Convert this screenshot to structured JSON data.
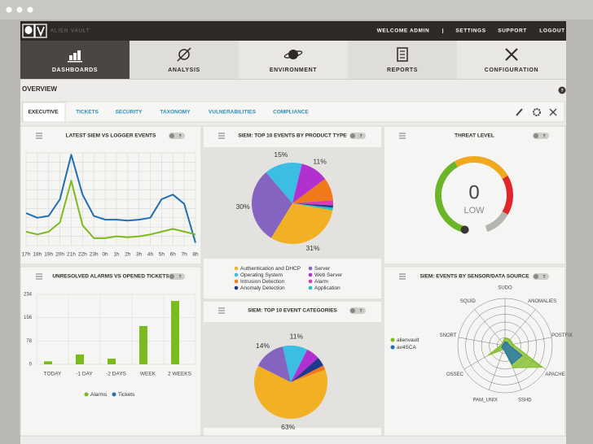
{
  "header": {
    "brand": "ALIEN VAULT",
    "links": [
      "WELCOME ADMIN",
      "|",
      "SETTINGS",
      "SUPPORT",
      "LOGOUT"
    ]
  },
  "nav": {
    "items": [
      "DASHBOARDS",
      "ANALYSIS",
      "ENVIRONMENT",
      "REPORTS",
      "CONFIGURATION"
    ],
    "active": 0
  },
  "overview": {
    "title": "OVERVIEW",
    "help": "?"
  },
  "tabs": {
    "items": [
      "EXECUTIVE",
      "TICKETS",
      "SECURITY",
      "TAXONOMY",
      "VULNERABILITIES",
      "COMPLIANCE"
    ],
    "active": 0
  },
  "panels": [
    {
      "title": "LATEST SIEM VS LOGGER EVENTS",
      "help": "?",
      "chart": {
        "type": "line",
        "categories": [
          "17h",
          "18h",
          "19h",
          "20h",
          "21h",
          "22h",
          "23h",
          "0h",
          "1h",
          "2h",
          "3h",
          "4h",
          "5h",
          "6h",
          "7h",
          "8h"
        ],
        "ylim": [
          0,
          100
        ],
        "grid": true,
        "series": [
          {
            "color": "#1f6fb2",
            "values": [
              35,
              30,
              32,
              50,
              98,
              55,
              32,
              28,
              28,
              27,
              28,
              30,
              50,
              55,
              45,
              3
            ]
          },
          {
            "color": "#7cbb1c",
            "values": [
              15,
              12,
              15,
              25,
              70,
              22,
              8,
              8,
              10,
              9,
              10,
              12,
              15,
              18,
              15,
              12
            ]
          }
        ]
      }
    },
    {
      "title": "SIEM: TOP 10 EVENTS BY PRODUCT TYPE",
      "help": "?",
      "chart": {
        "type": "pie",
        "categories": [
          "Authentication and DHCP",
          "Server",
          "Operating System",
          "Web Server",
          "Intrusion Detection",
          "Alarm",
          "Anomaly Detection",
          "Application"
        ],
        "values": [
          31,
          30,
          15,
          11,
          9,
          2,
          1,
          1
        ],
        "value_labels": [
          "31%",
          "30%",
          "15%",
          "11%",
          null,
          null,
          null,
          null
        ],
        "colors": [
          "#f2b124",
          "#8464c0",
          "#3cbde4",
          "#b330d0",
          "#f07a1a",
          "#d93cb8",
          "#1e3a8c",
          "#27c2c6"
        ]
      }
    },
    {
      "title": "THREAT LEVEL",
      "help": "?",
      "chart": {
        "type": "gauge",
        "value": 0,
        "label": "LOW"
      }
    },
    {
      "title": "UNRESOLVED ALARMS VS OPENED TICKETS",
      "help": "?",
      "chart": {
        "type": "bar",
        "categories": [
          "TODAY",
          "-1 DAY",
          "-2 DAYS",
          "WEEK",
          "2 WEEKS"
        ],
        "ylim": [
          0,
          234
        ],
        "yticks": [
          0,
          78,
          156,
          234
        ],
        "grid": true,
        "series": [
          {
            "name": "Alarms",
            "color": "#7cbb1c",
            "values": [
              10,
              33,
              19,
              128,
              212
            ]
          },
          {
            "name": "Tickets",
            "color": "#1f6fb2",
            "values": [
              0,
              0,
              0,
              0,
              0
            ]
          }
        ]
      }
    },
    {
      "title": "SIEM: TOP 10 EVENT CATEGORIES",
      "help": "?",
      "chart": {
        "type": "pie",
        "categories": [
          null,
          null,
          null,
          null,
          null,
          null
        ],
        "values": [
          63,
          14,
          11,
          6,
          4,
          2
        ],
        "value_labels": [
          "63%",
          "14%",
          "11%",
          null,
          null,
          null
        ],
        "colors": [
          "#f2b124",
          "#8464c0",
          "#3cbde4",
          "#b330d0",
          "#1e3a8c",
          "#f07a1a"
        ]
      }
    },
    {
      "title": "SIEM: EVENTS BY SENSOR/DATA SOURCE",
      "help": "?",
      "chart": {
        "type": "radar",
        "categories": [
          "SUDO",
          "ANOMALIES",
          "POSTFIX",
          "APACHE",
          "SSHD",
          "PAM_UNIX",
          "OSSEC",
          "SNORT",
          "SQUID"
        ],
        "rlim": [
          0,
          6
        ],
        "series": [
          {
            "name": "alienvault",
            "color": "#7cbb1c",
            "values": [
              1,
              1,
              1,
              5.5,
              3,
              0.5,
              2.5,
              0.5,
              0.5
            ]
          },
          {
            "name": "av4SCA",
            "color": "#1f6fb2",
            "values": [
              0.5,
              0.5,
              0.5,
              2.5,
              2.5,
              0.5,
              0.5,
              0.3,
              0.3
            ]
          }
        ]
      }
    }
  ]
}
